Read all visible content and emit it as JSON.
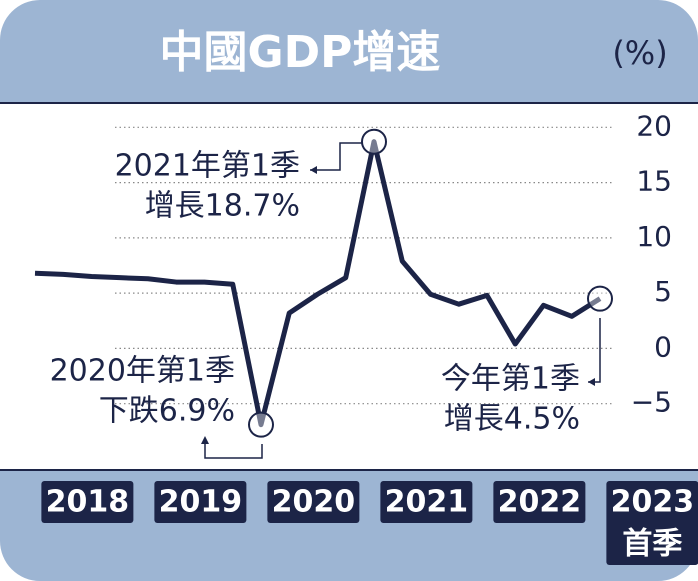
{
  "chart_data": {
    "type": "line",
    "title": "中國GDP增速",
    "unit_label": "(%)",
    "categories": [
      null,
      null,
      null,
      null,
      null,
      null,
      null,
      null,
      null,
      null,
      null,
      null,
      null,
      null,
      null,
      null,
      null,
      null,
      null,
      null,
      null
    ],
    "year_labels": [
      "2018",
      "2019",
      "2020",
      "2021",
      "2022",
      "2023"
    ],
    "last_year_note": "首季",
    "series": [
      {
        "color": "#1c2447",
        "values": [
          6.8,
          6.7,
          6.5,
          6.4,
          6.3,
          6.0,
          6.0,
          5.8,
          -6.9,
          3.2,
          4.9,
          6.4,
          18.7,
          7.9,
          4.9,
          4.0,
          4.8,
          0.4,
          3.9,
          2.9,
          4.5
        ]
      }
    ],
    "ylim": [
      -11,
      22.2
    ],
    "yticks": [
      20,
      15,
      10,
      5,
      0,
      {
        "value": -5,
        "label": "−5"
      }
    ],
    "grid": true,
    "annotations": [
      {
        "index": 12,
        "lines": [
          "2021年第1季",
          "增長18.7%"
        ]
      },
      {
        "index": 8,
        "lines": [
          "2020年第1季",
          "下跌6.9%"
        ]
      },
      {
        "index": 20,
        "lines": [
          "今年第1季",
          "增長4.5%"
        ]
      }
    ]
  }
}
